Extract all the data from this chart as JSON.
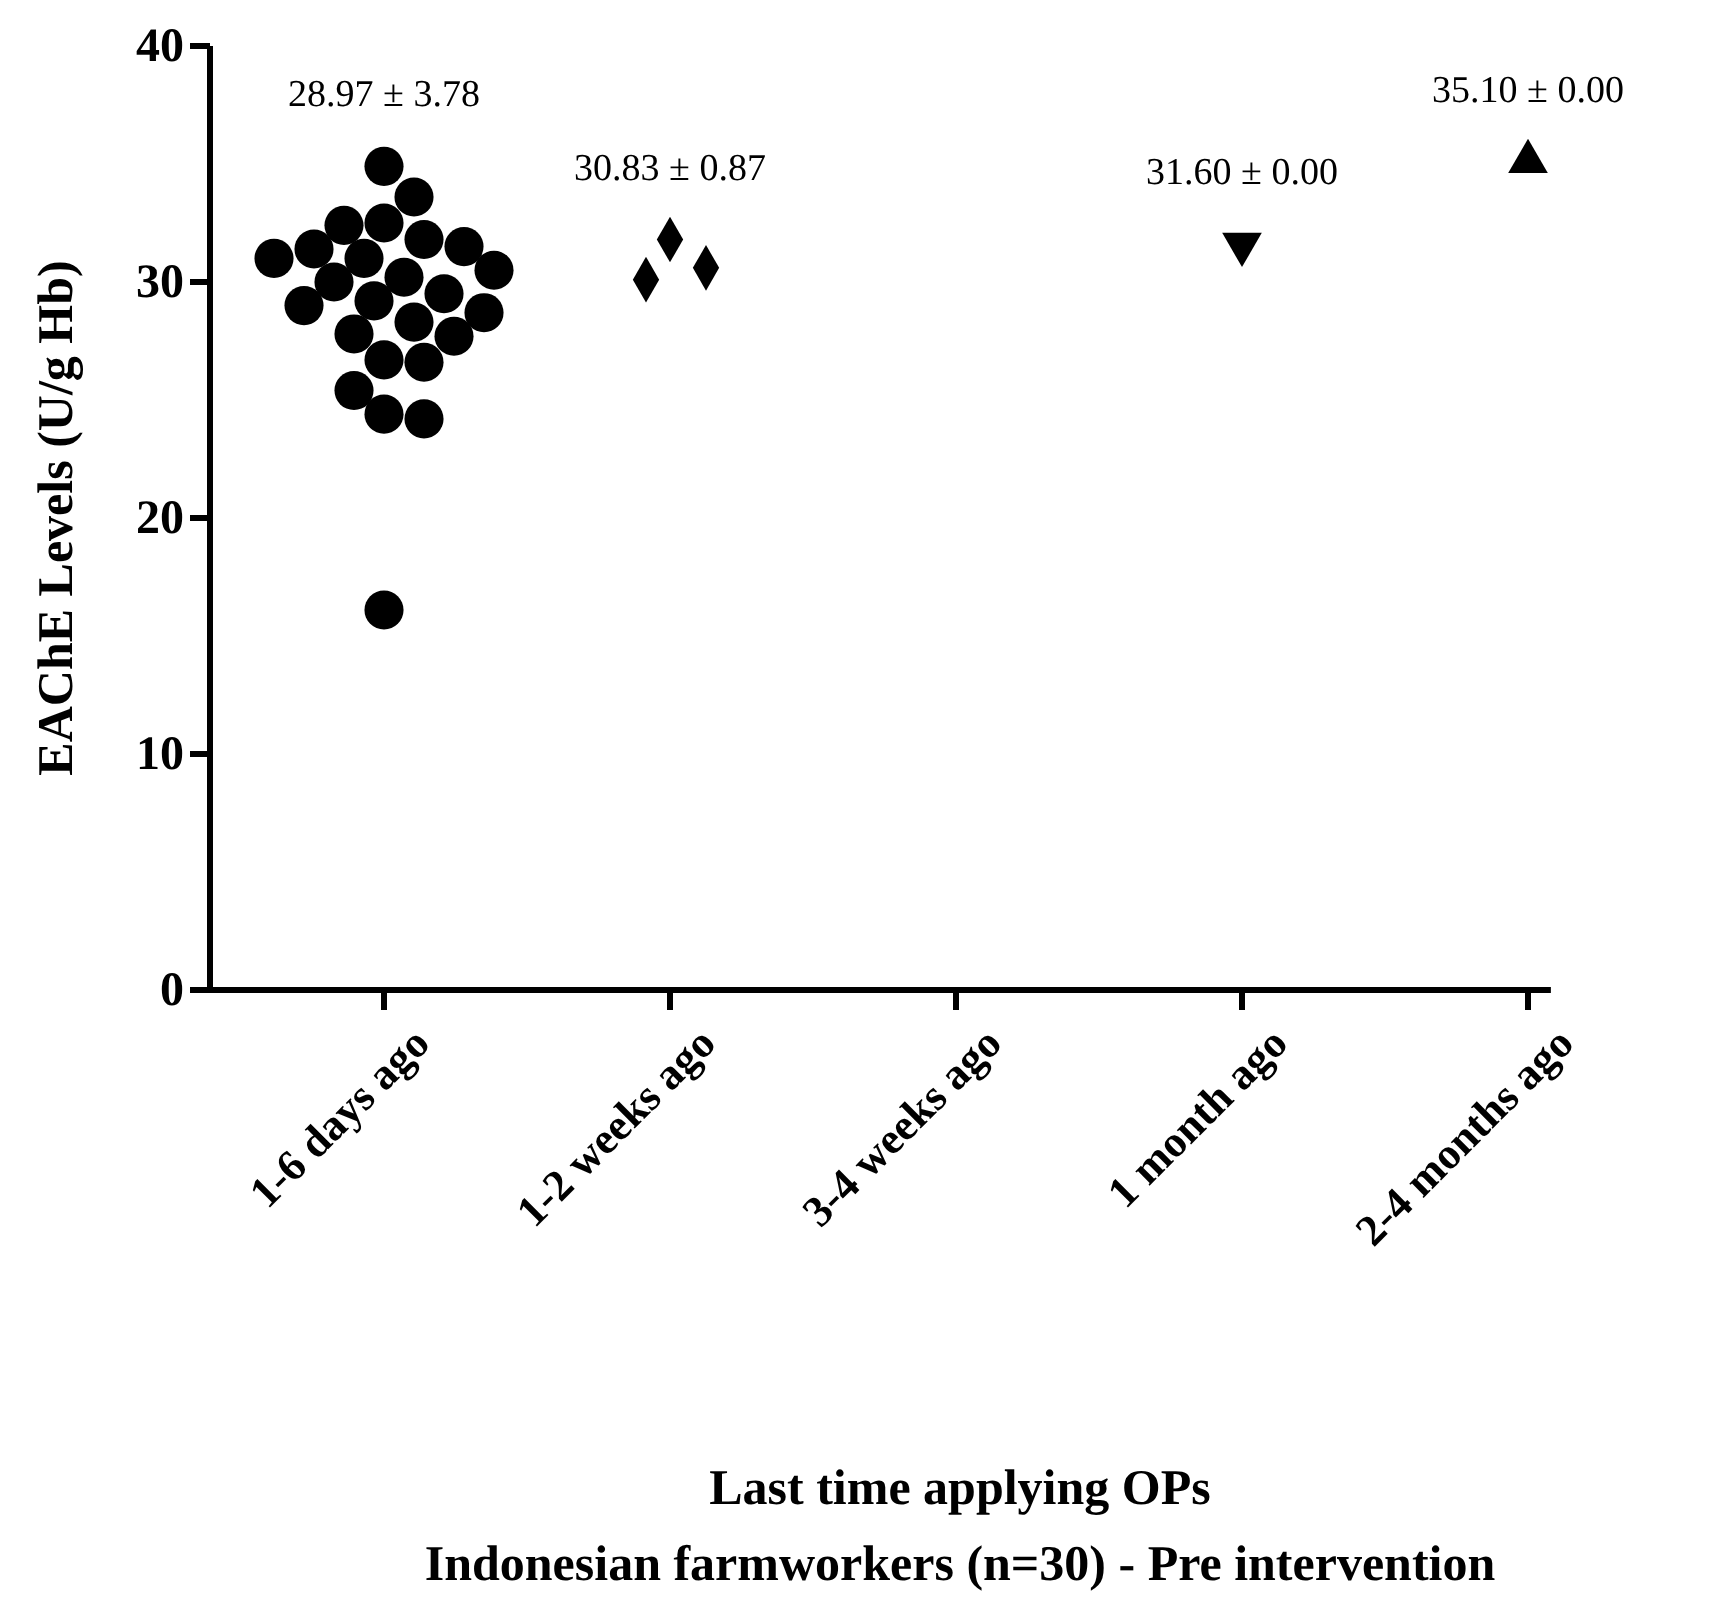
{
  "chart_data": {
    "type": "scatter",
    "xlabel": "Last time applying OPs",
    "subtitle": "Indonesian farmworkers (n=30) - Pre intervention",
    "ylabel": "EAChE Levels (U/g Hb)",
    "categories": [
      "1-6 days ago",
      "1-2 weeks ago",
      "3-4 weeks ago",
      "1 month ago",
      "2-4 months ago"
    ],
    "ylim": [
      0,
      40
    ],
    "yticks": [
      0,
      10,
      20,
      30,
      40
    ],
    "series": [
      {
        "color": "#000000",
        "marker": "circle",
        "x": [
          "1-6 days ago",
          "1-6 days ago",
          "1-6 days ago",
          "1-6 days ago",
          "1-6 days ago",
          "1-6 days ago",
          "1-6 days ago",
          "1-6 days ago",
          "1-6 days ago",
          "1-6 days ago",
          "1-6 days ago",
          "1-6 days ago",
          "1-6 days ago",
          "1-6 days ago",
          "1-6 days ago",
          "1-6 days ago",
          "1-6 days ago",
          "1-6 days ago",
          "1-6 days ago",
          "1-6 days ago",
          "1-6 days ago",
          "1-6 days ago",
          "1-6 days ago",
          "1-6 days ago",
          "1-6 days ago"
        ],
        "values": [
          34.9,
          33.6,
          32.4,
          32.5,
          31.4,
          31.0,
          28.3,
          28.7,
          27.8,
          27.7,
          26.6,
          26.7,
          25.4,
          24.4,
          24.2,
          16.1,
          31.8,
          31.5,
          31.0,
          30.5,
          30.2,
          30.0,
          29.5,
          29.2,
          29.0
        ]
      },
      {
        "color": "#000000",
        "marker": "diamond",
        "x": [
          "1-2 weeks ago",
          "1-2 weeks ago",
          "1-2 weeks ago"
        ],
        "values": [
          31.8,
          30.1,
          30.6
        ]
      },
      {
        "color": "#000000",
        "marker": "triangle-down",
        "x": [
          "1 month ago"
        ],
        "values": [
          31.6
        ]
      },
      {
        "color": "#000000",
        "marker": "triangle",
        "x": [
          "2-4 months ago"
        ],
        "values": [
          35.1
        ]
      }
    ],
    "annotations": [
      "28.97 ± 3.78",
      "30.83 ± 0.87",
      "31.60 ± 0.00",
      "35.10 ± 0.00"
    ]
  }
}
